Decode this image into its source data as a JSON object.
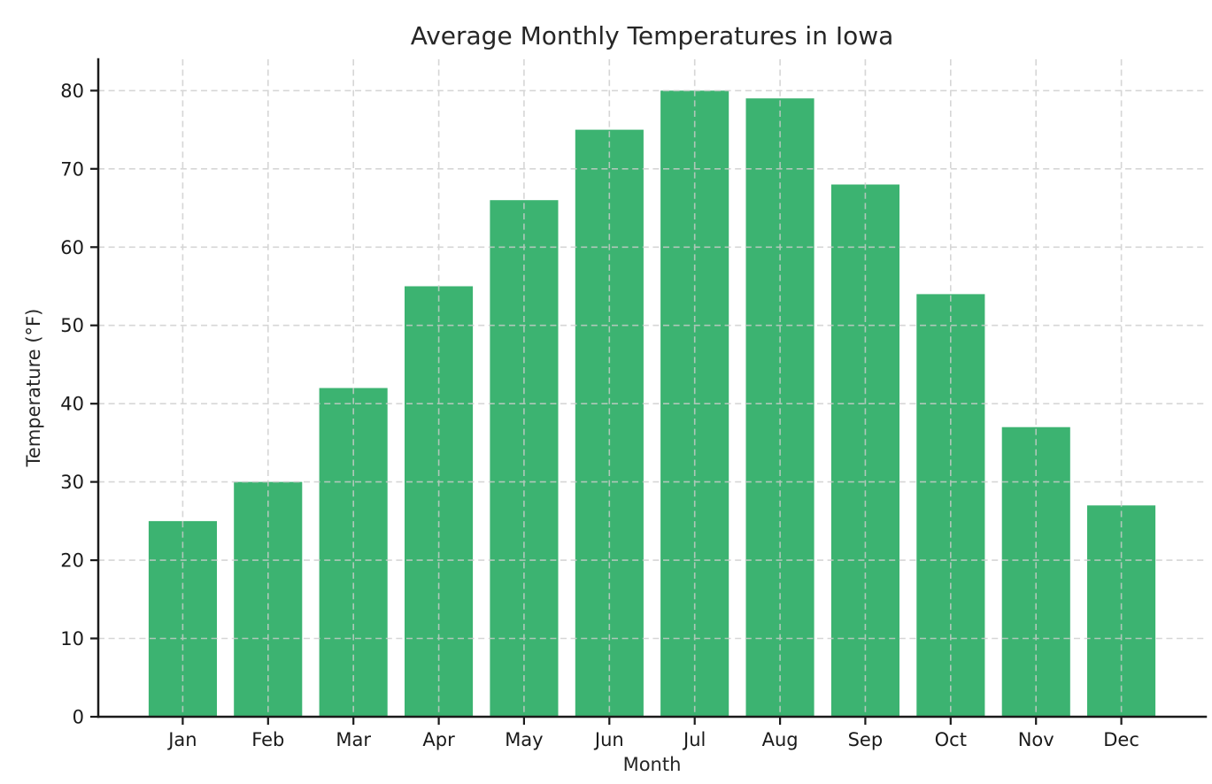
{
  "chart_data": {
    "type": "bar",
    "title": "Average Monthly Temperatures in Iowa",
    "xlabel": "Month",
    "ylabel": "Temperature (°F)",
    "categories": [
      "Jan",
      "Feb",
      "Mar",
      "Apr",
      "May",
      "Jun",
      "Jul",
      "Aug",
      "Sep",
      "Oct",
      "Nov",
      "Dec"
    ],
    "values": [
      25,
      30,
      42,
      55,
      66,
      75,
      80,
      79,
      68,
      54,
      37,
      27
    ],
    "yticks": [
      0,
      10,
      20,
      30,
      40,
      50,
      60,
      70,
      80
    ],
    "ylim": [
      0,
      84
    ],
    "grid": true,
    "legend": null,
    "colors": {
      "bar": "#3cb371",
      "grid": "#cccccc",
      "axis": "#1a1a1a",
      "text": "#262626",
      "background": "#ffffff"
    }
  }
}
